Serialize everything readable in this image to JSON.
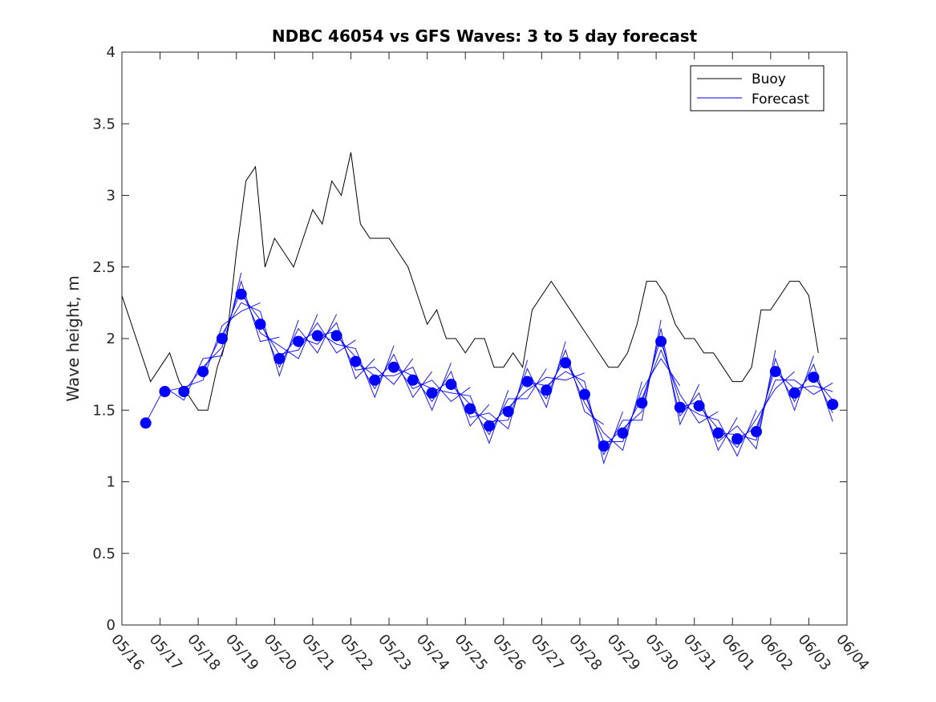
{
  "chart_data": {
    "type": "line",
    "title": "NDBC 46054 vs GFS Waves: 3 to 5 day forecast",
    "xlabel": "",
    "ylabel": "Wave height, m",
    "xlim": [
      "05/16",
      "06/04"
    ],
    "ylim": [
      0,
      4
    ],
    "y_ticks": [
      "0",
      "0.5",
      "1",
      "1.5",
      "2",
      "2.5",
      "3",
      "3.5",
      "4"
    ],
    "x_ticks": [
      "05/16",
      "05/17",
      "05/18",
      "05/19",
      "05/20",
      "05/21",
      "05/22",
      "05/23",
      "05/24",
      "05/25",
      "05/26",
      "05/27",
      "05/28",
      "05/29",
      "05/30",
      "05/31",
      "06/01",
      "06/02",
      "06/03",
      "06/04"
    ],
    "grid": false,
    "legend_position": "top-right",
    "legend": [
      {
        "label": "Buoy",
        "color": "#000000"
      },
      {
        "label": "Forecast",
        "color": "#0000ff"
      }
    ],
    "series": [
      {
        "name": "Buoy",
        "color": "#000000",
        "style": "line",
        "x": [
          "05/16 00:00",
          "05/16 06:00",
          "05/16 12:00",
          "05/16 18:00",
          "05/17 00:00",
          "05/17 06:00",
          "05/17 12:00",
          "05/17 18:00",
          "05/18 00:00",
          "05/18 06:00",
          "05/18 12:00",
          "05/18 18:00",
          "05/19 00:00",
          "05/19 06:00",
          "05/19 12:00",
          "05/19 18:00",
          "05/20 00:00",
          "05/20 06:00",
          "05/20 12:00",
          "05/20 18:00",
          "05/21 00:00",
          "05/21 06:00",
          "05/21 12:00",
          "05/21 18:00",
          "05/22 00:00",
          "05/22 06:00",
          "05/22 12:00",
          "05/22 18:00",
          "05/23 00:00",
          "05/23 06:00",
          "05/23 12:00",
          "05/23 18:00",
          "05/24 00:00",
          "05/24 06:00",
          "05/24 12:00",
          "05/24 18:00",
          "05/25 00:00",
          "05/25 06:00",
          "05/25 12:00",
          "05/25 18:00",
          "05/26 00:00",
          "05/26 06:00",
          "05/26 12:00",
          "05/26 18:00",
          "05/27 00:00",
          "05/27 06:00",
          "05/27 12:00",
          "05/27 18:00",
          "05/28 00:00",
          "05/28 06:00",
          "05/28 12:00",
          "05/28 18:00",
          "05/29 00:00",
          "05/29 06:00",
          "05/29 12:00",
          "05/29 18:00",
          "05/30 00:00",
          "05/30 06:00",
          "05/30 12:00",
          "05/30 18:00",
          "05/31 00:00",
          "05/31 06:00",
          "05/31 12:00",
          "05/31 18:00",
          "06/01 00:00",
          "06/01 06:00",
          "06/01 12:00",
          "06/01 18:00",
          "06/02 00:00",
          "06/02 06:00",
          "06/02 12:00",
          "06/02 18:00",
          "06/03 00:00",
          "06/03 06:00"
        ],
        "y": [
          2.3,
          2.1,
          1.9,
          1.7,
          1.8,
          1.9,
          1.7,
          1.6,
          1.5,
          1.5,
          1.8,
          2.0,
          2.6,
          3.1,
          3.2,
          2.5,
          2.7,
          2.6,
          2.5,
          2.7,
          2.9,
          2.8,
          3.1,
          3.0,
          3.3,
          2.8,
          2.7,
          2.7,
          2.7,
          2.6,
          2.5,
          2.3,
          2.1,
          2.2,
          2.0,
          2.0,
          1.9,
          2.0,
          2.0,
          1.8,
          1.8,
          1.9,
          1.8,
          2.2,
          2.3,
          2.4,
          2.3,
          2.2,
          2.1,
          2.0,
          1.9,
          1.8,
          1.8,
          1.9,
          2.1,
          2.4,
          2.4,
          2.3,
          2.1,
          2.0,
          2.0,
          1.9,
          1.9,
          1.8,
          1.7,
          1.7,
          1.8,
          2.2,
          2.2,
          2.3,
          2.4,
          2.4,
          2.3,
          1.9
        ]
      },
      {
        "name": "Forecast",
        "color": "#0000ff",
        "style": "markers",
        "x": [
          "05/16 15:00",
          "05/17 03:00",
          "05/17 15:00",
          "05/18 03:00",
          "05/18 15:00",
          "05/19 03:00",
          "05/19 15:00",
          "05/20 03:00",
          "05/20 15:00",
          "05/21 03:00",
          "05/21 15:00",
          "05/22 03:00",
          "05/22 15:00",
          "05/23 03:00",
          "05/23 15:00",
          "05/24 03:00",
          "05/24 15:00",
          "05/25 03:00",
          "05/25 15:00",
          "05/26 03:00",
          "05/26 15:00",
          "05/27 03:00",
          "05/27 15:00",
          "05/28 03:00",
          "05/28 15:00",
          "05/29 03:00",
          "05/29 15:00",
          "05/30 03:00",
          "05/30 15:00",
          "05/31 03:00",
          "05/31 15:00",
          "06/01 03:00",
          "06/01 15:00",
          "06/02 03:00",
          "06/02 15:00",
          "06/03 03:00",
          "06/03 15:00"
        ],
        "y": [
          1.41,
          1.63,
          1.63,
          1.77,
          2.0,
          2.31,
          2.1,
          1.86,
          1.98,
          2.02,
          2.02,
          1.84,
          1.71,
          1.8,
          1.71,
          1.62,
          1.68,
          1.51,
          1.39,
          1.49,
          1.7,
          1.64,
          1.83,
          1.61,
          1.25,
          1.34,
          1.55,
          1.98,
          1.52,
          1.53,
          1.34,
          1.3,
          1.35,
          1.77,
          1.62,
          1.73,
          1.54
        ]
      }
    ]
  }
}
